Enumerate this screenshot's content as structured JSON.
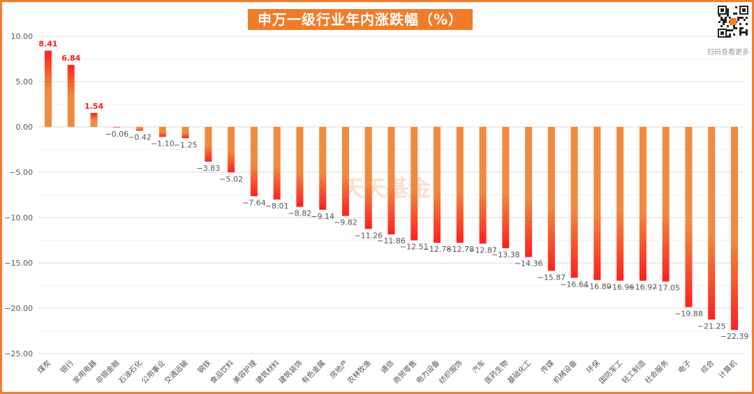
{
  "title": "申万一级行业年内涨跌幅（%）",
  "qr_caption": "扫码查看更多",
  "watermark": "天天基金",
  "colors": {
    "bar_top": "#f08a3c",
    "bar_end": "#ff2020",
    "positive_label": "#ff1a1a",
    "negative_label": "#555555",
    "frame": "#f08030"
  },
  "chart_data": {
    "type": "bar",
    "title": "申万一级行业年内涨跌幅（%）",
    "xlabel": "",
    "ylabel": "",
    "ylim": [
      -25,
      10
    ],
    "yticks": [
      "10.00",
      "5.00",
      "0.00",
      "-5.00",
      "-10.00",
      "-15.00",
      "-20.00",
      "-25.00"
    ],
    "grid": true,
    "categories": [
      "煤炭",
      "银行",
      "家用电器",
      "非银金融",
      "石油石化",
      "公用事业",
      "交通运输",
      "钢铁",
      "食品饮料",
      "美容护理",
      "建筑材料",
      "建筑装饰",
      "有色金属",
      "房地产",
      "农林牧渔",
      "通信",
      "商贸零售",
      "电力设备",
      "纺织服饰",
      "汽车",
      "医药生物",
      "基础化工",
      "传媒",
      "机械设备",
      "环保",
      "国防军工",
      "轻工制造",
      "社会服务",
      "电子",
      "综合",
      "计算机"
    ],
    "values": [
      8.41,
      6.84,
      1.54,
      -0.06,
      -0.42,
      -1.1,
      -1.25,
      -3.83,
      -5.02,
      -7.64,
      -8.01,
      -8.82,
      -9.14,
      -9.82,
      -11.26,
      -11.86,
      -12.51,
      -12.78,
      -12.78,
      -12.87,
      -13.38,
      -14.36,
      -15.87,
      -16.64,
      -16.89,
      -16.96,
      -16.97,
      -17.05,
      -19.88,
      -21.25,
      -22.39
    ]
  }
}
